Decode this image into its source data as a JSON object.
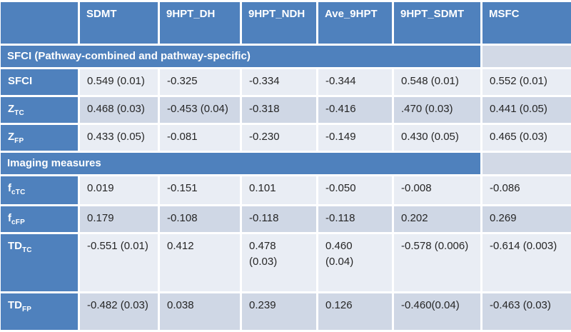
{
  "colors": {
    "header_blue": "#4f81bd",
    "band_light": "#e9edf4",
    "band_dark": "#cfd7e5",
    "section_gap_cell": "#d2d9e6",
    "top_rule": "#3a618f",
    "grid_lines": "#ffffff",
    "header_text": "#ffffff",
    "data_text": "#262626"
  },
  "columns": {
    "c0": "",
    "c1": "SDMT",
    "c2": "9HPT_DH",
    "c3": "9HPT_NDH",
    "c4": "Ave_9HPT",
    "c5": "9HPT_SDMT",
    "c6": "MSFC"
  },
  "sections": {
    "sfci_title": "SFCI (Pathway-combined and pathway-specific)",
    "imaging_title": "Imaging measures"
  },
  "rows": {
    "sfci": {
      "base": "SFCI",
      "sub": "",
      "v": [
        "0.549 (0.01)",
        "-0.325",
        "-0.334",
        "-0.344",
        "0.548 (0.01)",
        "0.552 (0.01)"
      ]
    },
    "ztc": {
      "base": "Z",
      "sub": "TC",
      "v": [
        "0.468 (0.03)",
        "-0.453 (0.04)",
        "-0.318",
        "-0.416",
        ".470 (0.03)",
        "0.441 (0.05)"
      ]
    },
    "zfp": {
      "base": "Z",
      "sub": "FP",
      "v": [
        "0.433 (0.05)",
        "-0.081",
        "-0.230",
        "-0.149",
        "0.430 (0.05)",
        "0.465  (0.03)"
      ]
    },
    "fctc": {
      "base": "f",
      "sub": "cTC",
      "v": [
        "0.019",
        "-0.151",
        "0.101",
        "-0.050",
        "-0.008",
        "-0.086"
      ]
    },
    "fcfp": {
      "base": "f",
      "sub": "cFP",
      "v": [
        "0.179",
        "-0.108",
        "-0.118",
        "-0.118",
        "0.202",
        "0.269"
      ]
    },
    "tdtc": {
      "base": "TD",
      "sub": "TC",
      "v": [
        "-0.551 (0.01)",
        "0.412",
        "0.478\n(0.03)",
        "0.460\n(0.04)",
        "-0.578 (0.006)",
        "-0.614 (0.003)"
      ]
    },
    "tdfp": {
      "base": "TD",
      "sub": "FP",
      "v": [
        "-0.482 (0.03)",
        "0.038",
        "0.239",
        "0.126",
        "-0.460(0.04)",
        "-0.463 (0.03)"
      ]
    }
  }
}
